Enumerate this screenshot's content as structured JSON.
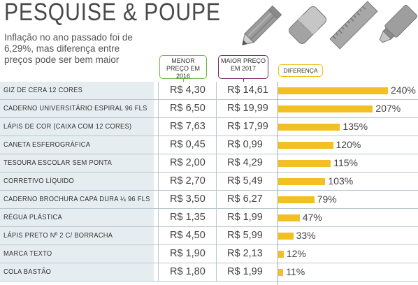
{
  "title": "PESQUISE & POUPE",
  "subtitle": "Inflação no ano passado foi de 6,29%, mas diferença entre preços pode ser bem maior",
  "columns": {
    "min_price": "MENOR PREÇO EM 2016",
    "max_price": "MAIOR PREÇO EM 2017",
    "difference": "DIFERENÇA"
  },
  "colors": {
    "bar": "#f2c022",
    "min_header": "#6fb543",
    "max_header": "#7a2a68",
    "diff_header": "#eec01e",
    "name_bg": "#e6edf1"
  },
  "icons": [
    "pencil-icon",
    "eraser-icon",
    "ruler-icon",
    "highlighter-icon"
  ],
  "chart_data": {
    "type": "bar",
    "orientation": "horizontal",
    "xlim": [
      0,
      240
    ],
    "categories": [
      "GIZ DE CERA 12 CORES",
      "CADERNO UNIVERSITÁRIO ESPIRAL 96 FLS",
      "LÁPIS DE COR (CAIXA COM 12 CORES)",
      "CANETA ESFEROGRÁFICA",
      "TESOURA ESCOLAR SEM PONTA",
      "CORRETIVO LÍQUIDO",
      "CADERNO BROCHURA CAPA DURA ¼ 96 FLS",
      "RÉGUA PLÁSTICA",
      "LÁPIS PRETO Nº 2 C/ BORRACHA",
      "MARCA TEXTO",
      "COLA BASTÃO"
    ],
    "min_price_2016": [
      "R$ 4,30",
      "R$ 6,50",
      "R$ 7,63",
      "R$ 0,45",
      "R$ 2,00",
      "R$ 2,70",
      "R$ 3,50",
      "R$ 1,35",
      "R$ 4,50",
      "R$ 1,90",
      "R$ 1,80"
    ],
    "max_price_2017": [
      "R$ 14,61",
      "R$ 19,99",
      "R$ 17,99",
      "R$ 0,99",
      "R$ 4,29",
      "R$ 5,49",
      "R$ 6,27",
      "R$ 1,99",
      "R$ 5,99",
      "R$ 2,13",
      "R$ 1,99"
    ],
    "values": [
      240,
      207,
      135,
      120,
      115,
      103,
      79,
      47,
      33,
      12,
      11
    ],
    "value_labels": [
      "240%",
      "207%",
      "135%",
      "120%",
      "115%",
      "103%",
      "79%",
      "47%",
      "33%",
      "12%",
      "11%"
    ]
  }
}
